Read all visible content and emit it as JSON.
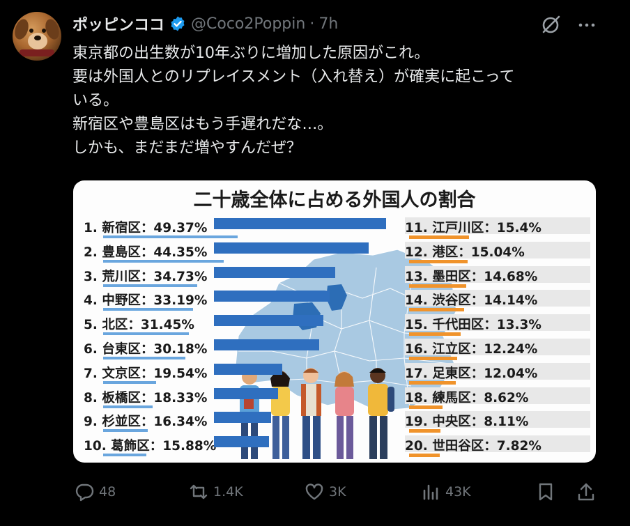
{
  "post": {
    "author_name": "ポッピンココ",
    "handle": "@Coco2Poppin",
    "separator": "·",
    "time": "7h",
    "text_lines": [
      "東京都の出生数が10年ぶりに増加した原因がこれ。",
      "要は外国人とのリプレイスメント（入れ替え）が確実に起こって",
      "いる。",
      "新宿区や豊島区はもう手遅れだな…。",
      "しかも、まだまだ増やすんだぜ？"
    ]
  },
  "infographic": {
    "title": "二十歳全体に占める外国人の割合",
    "left_accent": "#2f6fbf",
    "right_accent": "#f0932b",
    "left": [
      {
        "label": "1. 新宿区：49.37%",
        "value": 49.37
      },
      {
        "label": "2. 豊島区：44.35%",
        "value": 44.35
      },
      {
        "label": "3. 荒川区：34.73%",
        "value": 34.73
      },
      {
        "label": "4. 中野区：33.19%",
        "value": 33.19
      },
      {
        "label": "5. 北区：31.45%",
        "value": 31.45
      },
      {
        "label": "6. 台東区：30.18%",
        "value": 30.18
      },
      {
        "label": "7. 文京区：19.54%",
        "value": 19.54
      },
      {
        "label": "8. 板橋区：18.33%",
        "value": 18.33
      },
      {
        "label": "9. 杉並区：16.34%",
        "value": 16.34
      },
      {
        "label": "10. 葛飾区：15.88%",
        "value": 15.88
      }
    ],
    "right": [
      {
        "label": "11. 江戸川区：15.4%",
        "value": 15.4
      },
      {
        "label": "12. 港区：15.04%",
        "value": 15.04
      },
      {
        "label": "13. 墨田区：14.68%",
        "value": 14.68
      },
      {
        "label": "14. 渋谷区：14.14%",
        "value": 14.14
      },
      {
        "label": "15. 千代田区：13.3%",
        "value": 13.3
      },
      {
        "label": "16. 江立区：12.24%",
        "value": 12.24
      },
      {
        "label": "17. 足東区：12.04%",
        "value": 12.04
      },
      {
        "label": "18. 練馬区：8.62%",
        "value": 8.62
      },
      {
        "label": "19. 中央区：8.11%",
        "value": 8.11
      },
      {
        "label": "20. 世田谷区：7.82%",
        "value": 7.82
      }
    ]
  },
  "actions": {
    "replies": "48",
    "reposts": "1.4K",
    "likes": "3K",
    "views": "43K"
  },
  "icons": {
    "verified": "verified-badge-icon",
    "grok": "grok-icon",
    "more": "more-icon",
    "reply": "reply-icon",
    "repost": "repost-icon",
    "like": "heart-icon",
    "views": "views-icon",
    "bookmark": "bookmark-icon",
    "share": "share-icon"
  },
  "colors": {
    "verified": "#1d9bf0",
    "muted": "#71767b"
  }
}
